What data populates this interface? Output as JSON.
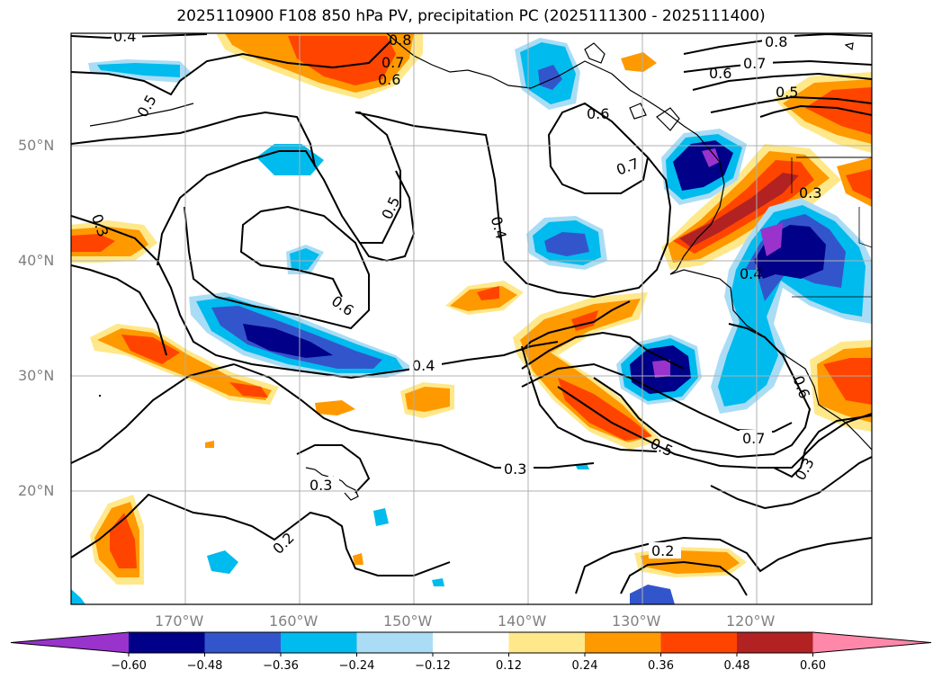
{
  "title": "2025110900 F108 850 hPa PV, precipitation PC (2025111300 - 2025111400)",
  "lat_labels": [
    "50°N",
    "40°N",
    "30°N",
    "20°N"
  ],
  "lon_labels": [
    "170°W",
    "160°W",
    "150°W",
    "140°W",
    "130°W",
    "120°W"
  ],
  "colorbar": {
    "ticks": [
      "−0.60",
      "−0.48",
      "−0.36",
      "−0.24",
      "−0.12",
      "0.12",
      "0.24",
      "0.36",
      "0.48",
      "0.60"
    ],
    "colors": [
      "#9933cc",
      "#000088",
      "#3355cc",
      "#00bbee",
      "#aaddf5",
      "#ffffff",
      "#ffe88a",
      "#ff9900",
      "#ff4400",
      "#b22222",
      "#ff88aa"
    ]
  },
  "contour_labels": [
    {
      "text": "0.4"
    },
    {
      "text": "0.8"
    },
    {
      "text": "0.7"
    },
    {
      "text": "0.6"
    },
    {
      "text": "0.5"
    },
    {
      "text": "0.8"
    },
    {
      "text": "0.7"
    },
    {
      "text": "0.6"
    },
    {
      "text": "0.5"
    },
    {
      "text": "0.6"
    },
    {
      "text": "0.7"
    },
    {
      "text": "0.3"
    },
    {
      "text": "0.5"
    },
    {
      "text": "0.4"
    },
    {
      "text": "0.3"
    },
    {
      "text": "0.6"
    },
    {
      "text": "0.4"
    },
    {
      "text": "0.4"
    },
    {
      "text": "0.3"
    },
    {
      "text": "0.3"
    },
    {
      "text": "0.2"
    },
    {
      "text": "0.5"
    },
    {
      "text": "0.7"
    },
    {
      "text": "0.6"
    },
    {
      "text": "0.3"
    },
    {
      "text": "0.2"
    }
  ]
}
